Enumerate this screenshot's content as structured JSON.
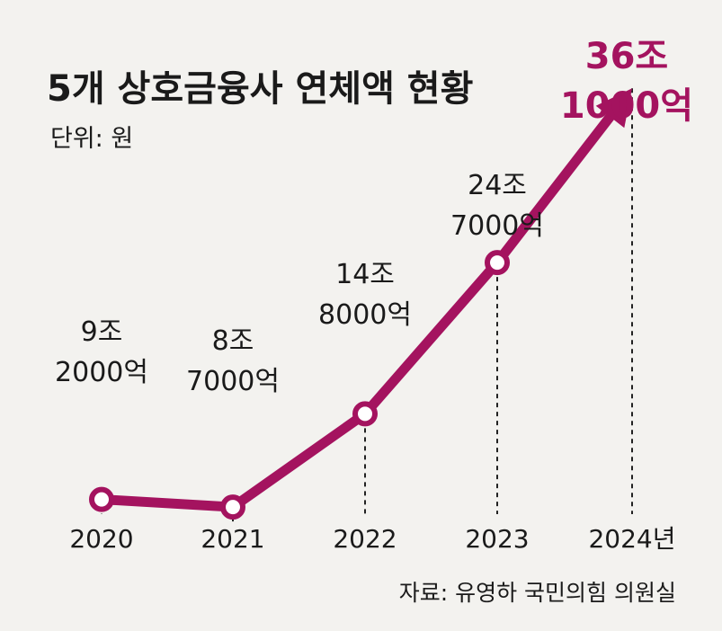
{
  "chart_data": {
    "type": "line",
    "title": "5개 상호금융사 연체액 현황",
    "unit_label": "단위: 원",
    "source": "자료: 유영하 국민의힘 의원실",
    "categories": [
      "2020",
      "2021",
      "2022",
      "2023",
      "2024년"
    ],
    "values_trillion_won": [
      9.2,
      8.7,
      14.8,
      24.7,
      36.1
    ],
    "value_labels": [
      [
        "9조",
        "2000억"
      ],
      [
        "8조",
        "7000억"
      ],
      [
        "14조",
        "8000억"
      ],
      [
        "24조",
        "7000억"
      ],
      [
        "36조",
        "1000억"
      ]
    ],
    "highlight_last": true,
    "ylim": [
      0,
      40
    ],
    "grid": false,
    "colors": {
      "line": "#a4135f",
      "marker_fill": "#ffffff",
      "highlight_text": "#a4135f",
      "background": "#f3f2ef"
    }
  }
}
